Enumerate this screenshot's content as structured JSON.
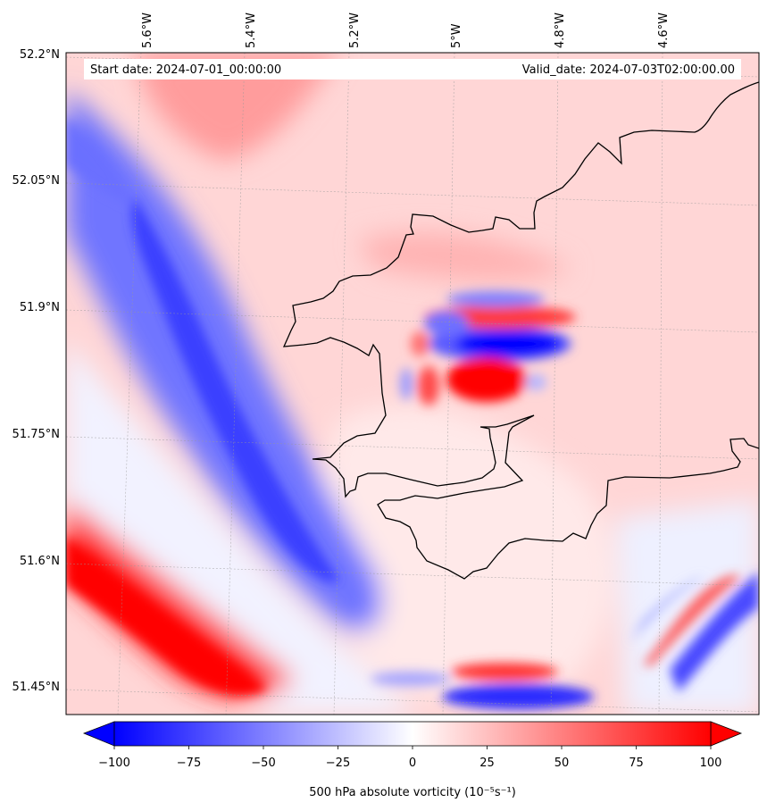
{
  "map": {
    "start_label": "Start date: 2024-07-01_00:00:00",
    "valid_label": "Valid_date: 2024-07-03T02:00:00.00",
    "lon_ticks": [
      "5.6°W",
      "5.4°W",
      "5.2°W",
      "5°W",
      "4.8°W",
      "4.6°W"
    ],
    "lat_ticks": [
      "52.2°N",
      "52.05°N",
      "51.9°N",
      "51.75°N",
      "51.6°N",
      "51.45°N"
    ]
  },
  "colorbar": {
    "label": "500 hPa absolute vorticity (10⁻⁵s⁻¹)",
    "ticks": [
      "−100",
      "−75",
      "−50",
      "−25",
      "0",
      "25",
      "50",
      "75",
      "100"
    ],
    "min_value": -100,
    "max_value": 100,
    "color_low": "#0000ff",
    "color_mid": "#ffffff",
    "color_high": "#ff0000"
  }
}
